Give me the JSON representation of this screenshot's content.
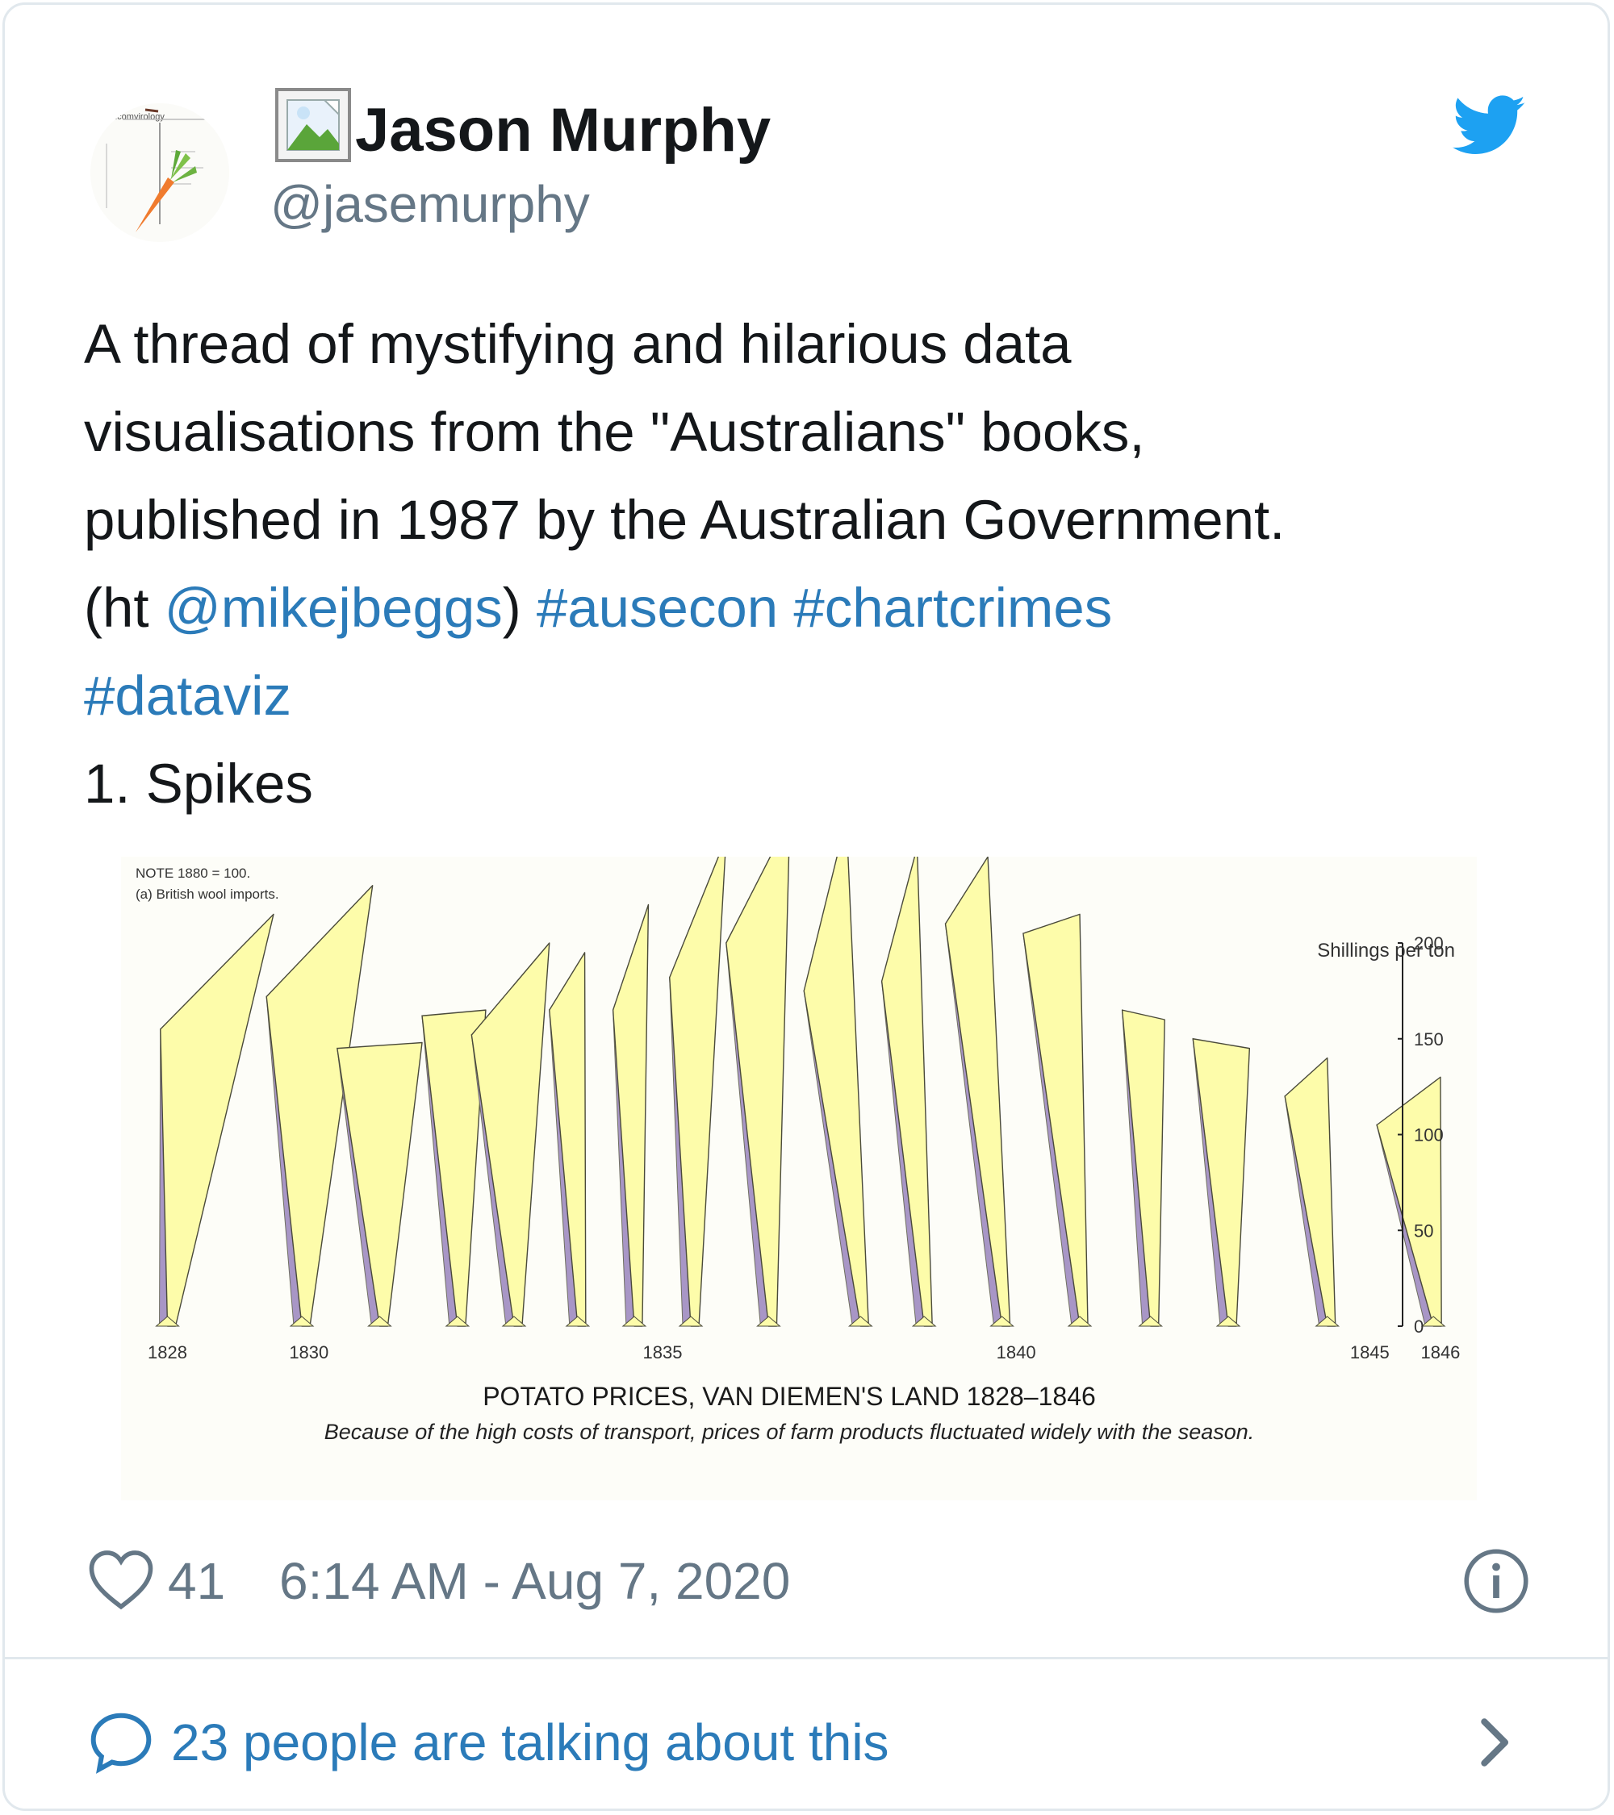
{
  "tweet": {
    "display_name": "Jason Murphy",
    "handle": "@jasemurphy",
    "avatar_icon": "carrot-chart-icon",
    "avatar_text": "Incomvirology",
    "text_lines": [
      [
        {
          "t": "A thread of mystifying and hilarious data"
        }
      ],
      [
        {
          "t": "visualisations from the \"Australians\" books,"
        }
      ],
      [
        {
          "t": "published in 1987 by the Australian Government."
        }
      ],
      [
        {
          "t": "(ht "
        },
        {
          "t": "@mikejbeggs",
          "link": true
        },
        {
          "t": ") "
        },
        {
          "t": "#ausecon",
          "link": true
        },
        {
          "t": " "
        },
        {
          "t": "#chartcrimes",
          "link": true
        }
      ],
      [
        {
          "t": "#dataviz",
          "link": true
        }
      ],
      [
        {
          "t": "1. Spikes"
        }
      ]
    ],
    "like_count": "41",
    "timestamp": "6:14 AM - Aug 7, 2020",
    "talking": "23 people are talking about this"
  },
  "colors": {
    "link": "#2b7bb9",
    "secondary": "#657786",
    "twitter_blue": "#1da1f2",
    "spike_face": "#fdfcaa",
    "spike_shadow": "#a896c6"
  },
  "icons": {
    "broken": "broken-image-icon",
    "brand": "twitter-bird-icon",
    "like": "heart-icon",
    "info": "info-icon",
    "reply": "chat-bubble-icon",
    "more": "chevron-right-icon"
  },
  "chart_data": {
    "type": "area",
    "title": "POTATO PRICES, VAN DIEMEN'S LAND 1828–1846",
    "subtitle": "Because of the high costs of transport, prices of farm products fluctuated widely with the season.",
    "note_lines": [
      "NOTE  1880 = 100.",
      "(a) British wool imports."
    ],
    "ylabel": "Shillings per ton",
    "ylim": [
      0,
      200
    ],
    "yticks": [
      0,
      50,
      100,
      150,
      200
    ],
    "xlim": [
      1827.8,
      1846.4
    ],
    "xticks": [
      "1828",
      "1830",
      "1835",
      "1840",
      "1845",
      "1846"
    ],
    "xtick_values": [
      1828,
      1830,
      1835,
      1840,
      1845,
      1846
    ],
    "series": [
      {
        "values": [
          [
            1827.9,
            155
          ],
          [
            1829.5,
            215
          ],
          [
            1828.0,
            0
          ],
          [
            1829.4,
            172
          ],
          [
            1830.9,
            230
          ],
          [
            1829.9,
            0
          ],
          [
            1830.4,
            145
          ],
          [
            1831.6,
            148
          ],
          [
            1831.0,
            0
          ],
          [
            1831.6,
            162
          ],
          [
            1832.5,
            165
          ],
          [
            1832.1,
            0
          ],
          [
            1832.3,
            152
          ],
          [
            1833.4,
            200
          ],
          [
            1832.9,
            0
          ],
          [
            1833.4,
            165
          ],
          [
            1833.9,
            195
          ],
          [
            1833.8,
            0
          ],
          [
            1834.3,
            165
          ],
          [
            1834.8,
            220
          ],
          [
            1834.6,
            0
          ],
          [
            1835.1,
            182
          ],
          [
            1835.9,
            255
          ],
          [
            1835.4,
            0
          ],
          [
            1835.9,
            200
          ],
          [
            1836.8,
            265
          ],
          [
            1836.5,
            0
          ],
          [
            1837.0,
            175
          ],
          [
            1837.6,
            265
          ],
          [
            1837.8,
            0
          ],
          [
            1838.1,
            180
          ],
          [
            1838.6,
            250
          ],
          [
            1838.7,
            0
          ],
          [
            1839.0,
            210
          ],
          [
            1839.6,
            245
          ],
          [
            1839.8,
            0
          ],
          [
            1840.1,
            205
          ],
          [
            1840.9,
            215
          ],
          [
            1840.9,
            0
          ],
          [
            1841.5,
            165
          ],
          [
            1842.1,
            160
          ],
          [
            1841.9,
            0
          ],
          [
            1842.5,
            150
          ],
          [
            1843.3,
            145
          ],
          [
            1843.0,
            0
          ],
          [
            1843.8,
            120
          ],
          [
            1844.4,
            140
          ],
          [
            1844.4,
            0
          ],
          [
            1845.1,
            105
          ],
          [
            1846.0,
            130
          ],
          [
            1845.9,
            0
          ]
        ]
      }
    ]
  }
}
